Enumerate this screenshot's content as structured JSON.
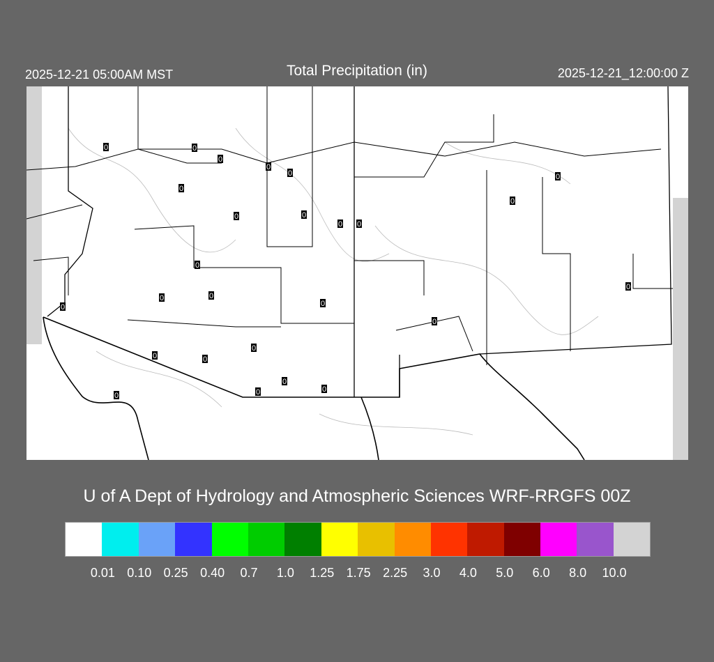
{
  "header": {
    "title": "Total Precipitation (in)",
    "valid_local": "2025-12-21 05:00AM MST",
    "valid_utc": "2025-12-21_12:00:00 Z"
  },
  "credit": "U of A Dept of Hydrology and Atmospheric Sciences WRF-RRGFS 00Z",
  "colorbar": {
    "colors": [
      "#ffffff",
      "#00eeee",
      "#6aa2f8",
      "#3333ff",
      "#00ff00",
      "#00cc00",
      "#007f00",
      "#ffff00",
      "#e8c000",
      "#ff8c00",
      "#ff3300",
      "#bf1a00",
      "#7f0000",
      "#ff00ff",
      "#9955cc",
      "#d3d3d3"
    ],
    "labels": [
      "0.01",
      "0.10",
      "0.25",
      "0.40",
      "0.7",
      "1.0",
      "1.25",
      "1.75",
      "2.25",
      "3.0",
      "4.0",
      "5.0",
      "6.0",
      "8.0",
      "10.0"
    ]
  },
  "stations": [
    "0",
    "0",
    "0",
    "0",
    "0",
    "0",
    "0",
    "0",
    "0",
    "0",
    "0",
    "0",
    "0",
    "0",
    "0",
    "0",
    "0",
    "0",
    "0",
    "0",
    "0",
    "0",
    "0",
    "0",
    "0",
    "0"
  ]
}
